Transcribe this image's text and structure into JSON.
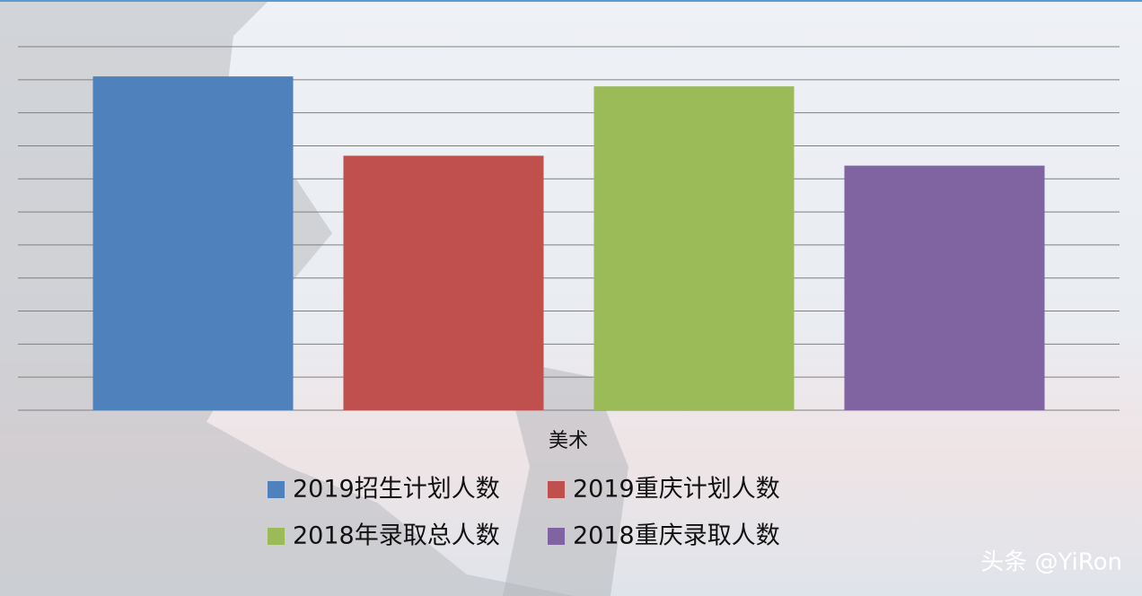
{
  "chart_data": {
    "type": "bar",
    "categories": [
      "美术"
    ],
    "series": [
      {
        "name": "2019招生计划人数",
        "color": "#4f81bd",
        "values": [
          10.1
        ]
      },
      {
        "name": "2019重庆计划人数",
        "color": "#c0504d",
        "values": [
          7.7
        ]
      },
      {
        "name": "2018年录取总人数",
        "color": "#9bbb59",
        "values": [
          9.8
        ]
      },
      {
        "name": "2018重庆录取人数",
        "color": "#8064a2",
        "values": [
          7.4
        ]
      }
    ],
    "ylim": [
      0,
      11
    ],
    "yticks": [
      0,
      1,
      2,
      3,
      4,
      5,
      6,
      7,
      8,
      9,
      10,
      11
    ],
    "grid": true,
    "legend": "bottom",
    "watermark": "头条 @YiRon"
  }
}
